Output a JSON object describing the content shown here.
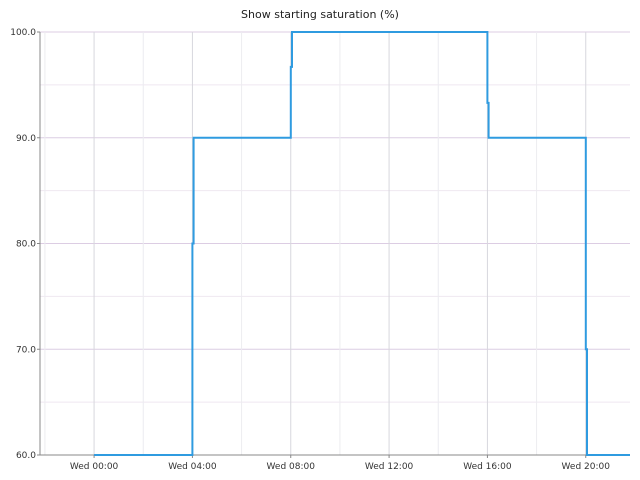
{
  "chart_data": {
    "type": "line",
    "title": "Show starting saturation (%)",
    "xlabel": "",
    "ylabel": "",
    "ylim": [
      60,
      100
    ],
    "xlim_hours": [
      -2.2,
      21.8
    ],
    "y_ticks": [
      "60.0",
      "70.0",
      "80.0",
      "90.0",
      "100.0"
    ],
    "x_ticks": [
      "Wed 00:00",
      "Wed 04:00",
      "Wed 08:00",
      "Wed 12:00",
      "Wed 16:00",
      "Wed 20:00"
    ],
    "grid": true,
    "colors": {
      "line": "#2f9be0",
      "grid": "#e6d9ea",
      "axis": "#888888"
    },
    "series": [
      {
        "x_hours": [
          0,
          4,
          4,
          4.05,
          4.05,
          8,
          8,
          8.05,
          8.05,
          16,
          16,
          16.05,
          16.05,
          20,
          20,
          20.05,
          20.05,
          21.8
        ],
        "values": [
          60,
          60,
          80,
          80,
          90,
          90,
          96.7,
          96.7,
          100,
          100,
          93.3,
          93.3,
          90,
          90,
          70,
          70,
          60,
          60
        ]
      }
    ]
  }
}
